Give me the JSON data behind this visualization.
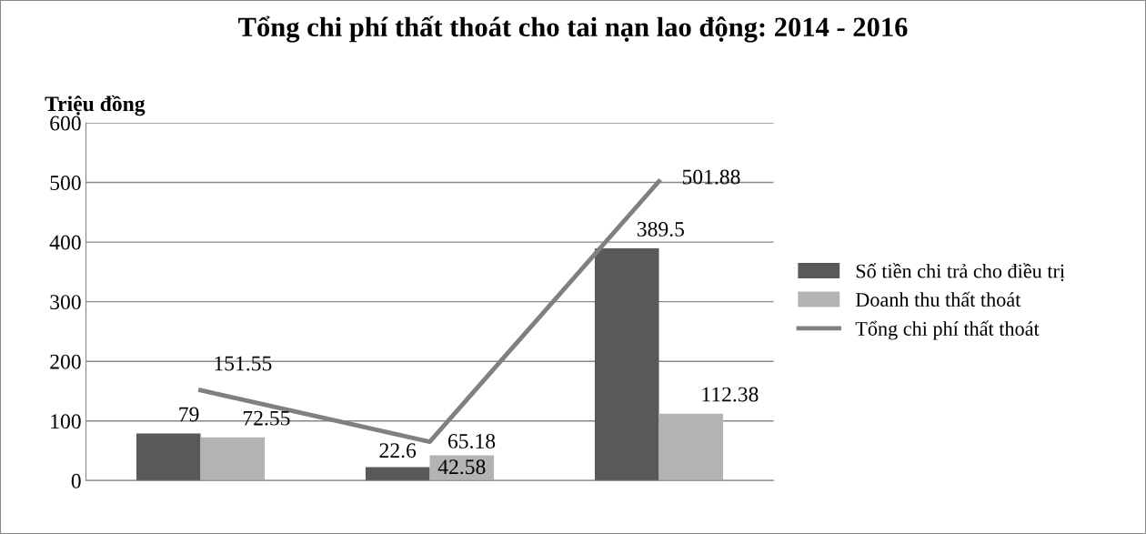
{
  "chart_data": {
    "type": "bar",
    "title": "Tổng chi phí thất thoát cho tai nạn lao động: 2014 - 2016",
    "ylabel": "Triệu đồng",
    "categories": [
      null,
      null,
      null
    ],
    "series": [
      {
        "name": "Số tiền chi trả cho điều trị",
        "color": "#595959",
        "values": [
          79,
          22.6,
          389.5
        ]
      },
      {
        "name": "Doanh thu thất thoát",
        "color": "#b3b3b3",
        "values": [
          72.55,
          42.58,
          112.38
        ]
      },
      {
        "name": "Tổng chi phí thất thoát",
        "type": "line",
        "color": "#808080",
        "values": [
          151.55,
          65.18,
          501.88
        ]
      }
    ],
    "ylim": [
      0,
      600
    ],
    "yticks": [
      0,
      100,
      200,
      300,
      400,
      500,
      600
    ],
    "grid": "y",
    "legend": "right",
    "data_labels": true
  }
}
